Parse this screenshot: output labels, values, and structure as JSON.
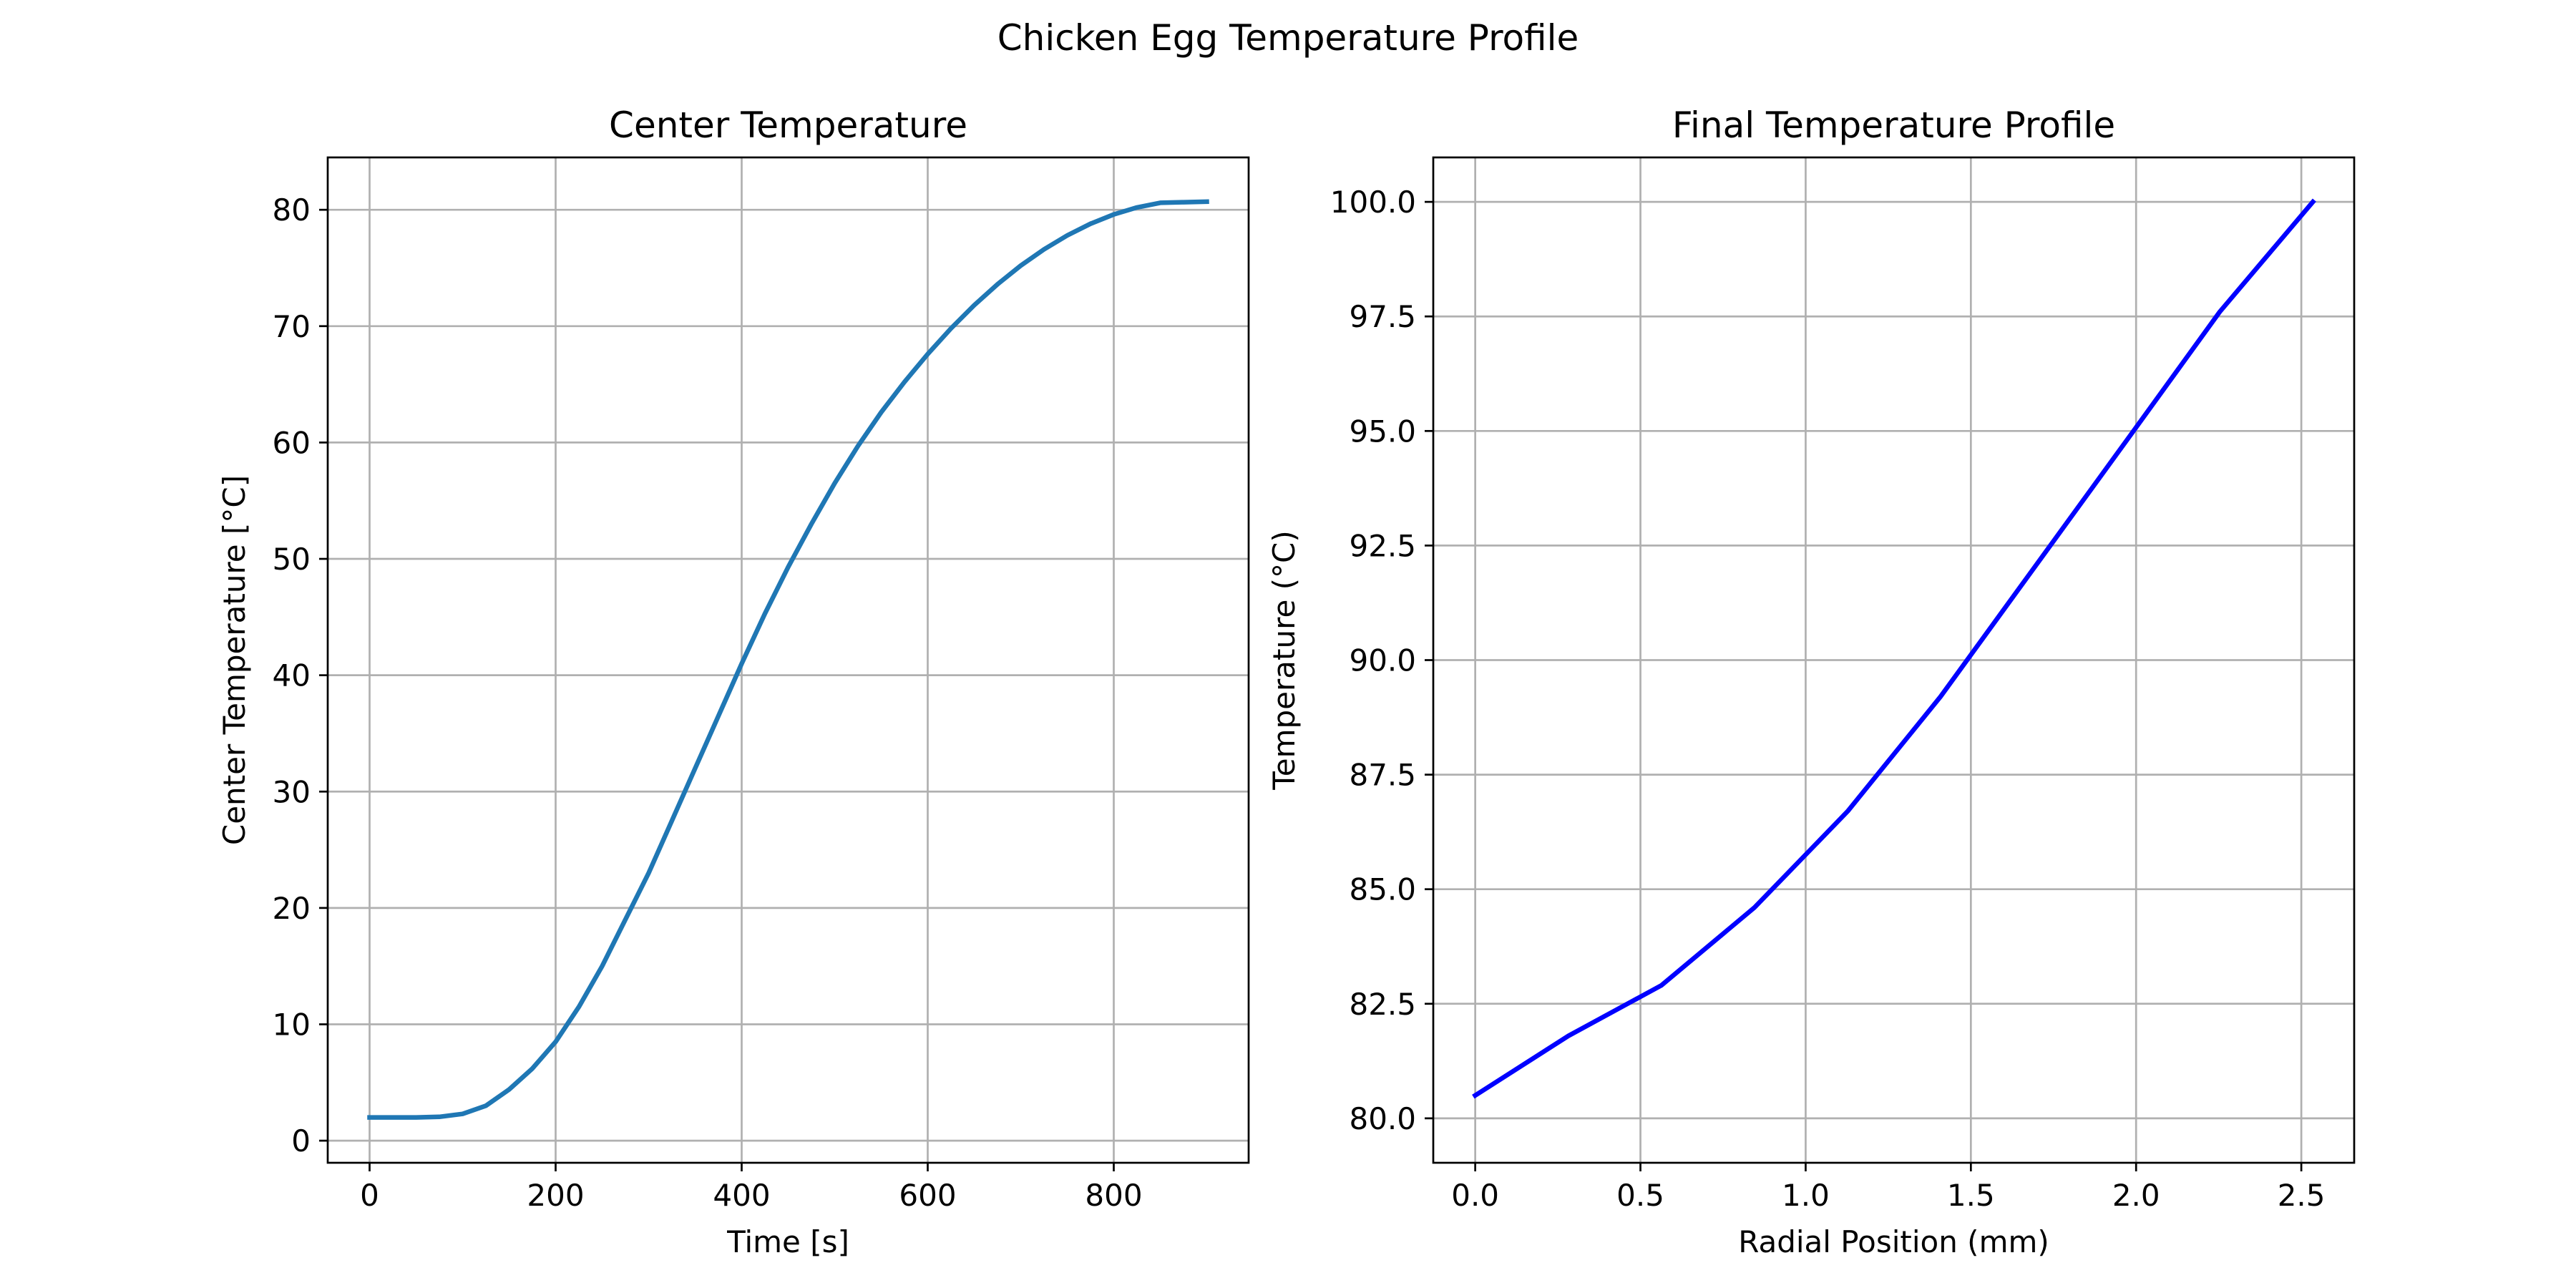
{
  "figure_title": "Chicken Egg Temperature Profile",
  "chart_data": [
    {
      "type": "line",
      "title": "Center Temperature",
      "xlabel": "Time [s]",
      "ylabel": "Center Temperature [°C]",
      "xlim": [
        -45,
        945
      ],
      "ylim": [
        -1.9,
        84.5
      ],
      "xticks": [
        0,
        200,
        400,
        600,
        800
      ],
      "xtick_labels": [
        "0",
        "200",
        "400",
        "600",
        "800"
      ],
      "yticks": [
        0,
        10,
        20,
        30,
        40,
        50,
        60,
        70,
        80
      ],
      "ytick_labels": [
        "0",
        "10",
        "20",
        "30",
        "40",
        "50",
        "60",
        "70",
        "80"
      ],
      "grid": true,
      "series": [
        {
          "color": "#1f77b4",
          "x": [
            0,
            25,
            50,
            75,
            100,
            125,
            150,
            175,
            200,
            225,
            250,
            275,
            300,
            325,
            350,
            375,
            400,
            425,
            450,
            475,
            500,
            525,
            550,
            575,
            600,
            625,
            650,
            675,
            700,
            725,
            750,
            775,
            800,
            825,
            850,
            875,
            900
          ],
          "y": [
            2.0,
            2.0,
            2.0,
            2.05,
            2.3,
            3.0,
            4.4,
            6.2,
            8.5,
            11.5,
            15.0,
            19.0,
            23.0,
            27.5,
            32.0,
            36.5,
            41.0,
            45.3,
            49.3,
            53.0,
            56.5,
            59.7,
            62.6,
            65.2,
            67.6,
            69.8,
            71.8,
            73.6,
            75.2,
            76.6,
            77.8,
            78.8,
            79.6,
            80.2,
            80.6,
            80.65,
            80.7
          ]
        }
      ]
    },
    {
      "type": "line",
      "title": "Final Temperature Profile",
      "xlabel": "Radial Position (mm)",
      "ylabel": "Temperature (°C)",
      "xlim": [
        -0.127,
        2.66
      ],
      "ylim": [
        79.03,
        100.97
      ],
      "xticks": [
        0.0,
        0.5,
        1.0,
        1.5,
        2.0,
        2.5
      ],
      "xtick_labels": [
        "0.0",
        "0.5",
        "1.0",
        "1.5",
        "2.0",
        "2.5"
      ],
      "yticks": [
        80.0,
        82.5,
        85.0,
        87.5,
        90.0,
        92.5,
        95.0,
        97.5,
        100.0
      ],
      "ytick_labels": [
        "80.0",
        "82.5",
        "85.0",
        "87.5",
        "90.0",
        "92.5",
        "95.0",
        "97.5",
        "100.0"
      ],
      "grid": true,
      "series": [
        {
          "color": "#0000ff",
          "x": [
            0.0,
            0.282,
            0.563,
            0.845,
            1.127,
            1.408,
            1.69,
            1.972,
            2.253,
            2.535
          ],
          "y": [
            80.5,
            81.8,
            82.9,
            84.6,
            86.7,
            89.2,
            92.0,
            94.8,
            97.6,
            100.0
          ]
        }
      ]
    }
  ]
}
